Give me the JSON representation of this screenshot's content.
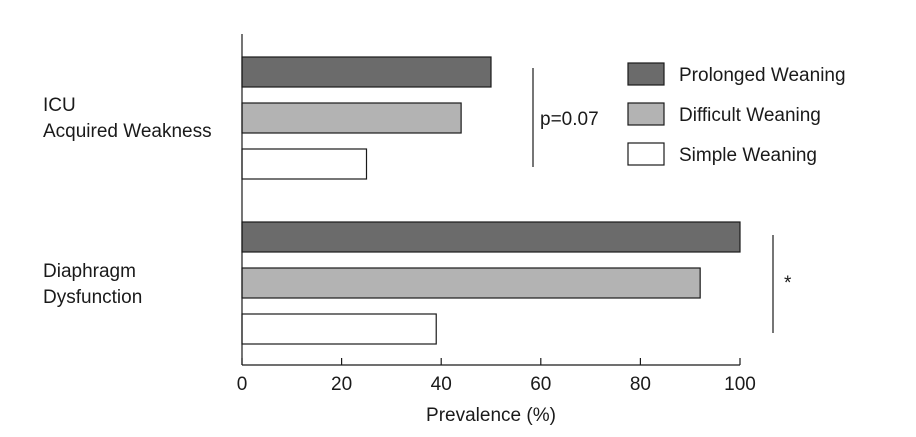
{
  "chart_data": {
    "type": "bar",
    "orientation": "horizontal",
    "categories": [
      [
        "ICU",
        "Acquired Weakness"
      ],
      [
        "Diaphragm",
        "Dysfunction"
      ]
    ],
    "series": [
      {
        "name": "Prolonged Weaning",
        "values": [
          50,
          100
        ],
        "color": "#6b6b6b"
      },
      {
        "name": "Difficult Weaning",
        "values": [
          44,
          92
        ],
        "color": "#b3b3b3"
      },
      {
        "name": "Simple Weaning",
        "values": [
          25,
          39
        ],
        "color": "#ffffff"
      }
    ],
    "xlabel": "Prevalence (%)",
    "xlim": [
      0,
      100
    ],
    "xticks": [
      0,
      20,
      40,
      60,
      80,
      100
    ],
    "legend_position": "top-right",
    "grid": false,
    "annotations": [
      "p=0.07",
      "*"
    ]
  }
}
